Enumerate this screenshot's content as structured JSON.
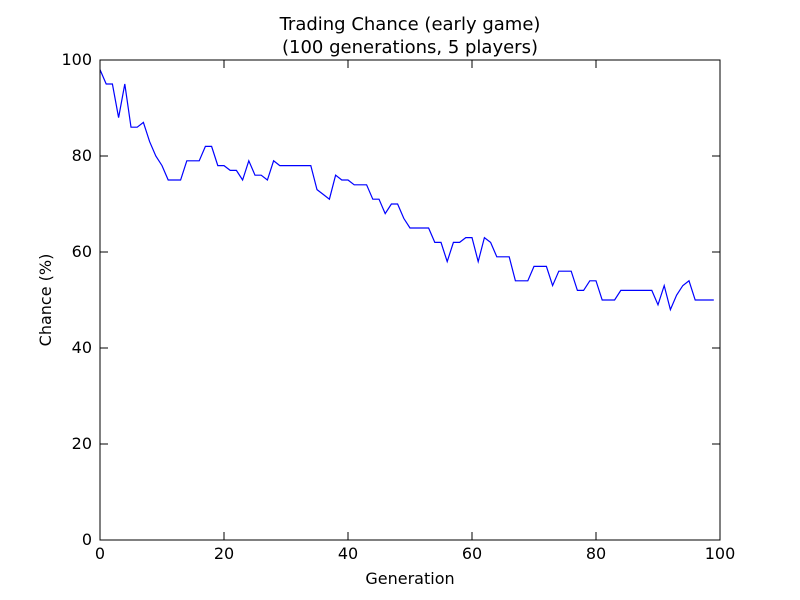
{
  "chart_data": {
    "type": "line",
    "title": "Trading Chance (early game)",
    "subtitle": "(100 generations, 5 players)",
    "xlabel": "Generation",
    "ylabel": "Chance (%)",
    "xlim": [
      0,
      100
    ],
    "ylim": [
      0,
      100
    ],
    "x_ticks": [
      "0",
      "20",
      "40",
      "60",
      "80",
      "100"
    ],
    "y_ticks": [
      "0",
      "20",
      "40",
      "60",
      "80",
      "100"
    ],
    "grid": false,
    "legend": "none",
    "series": [
      {
        "color": "#0000ff",
        "x": [
          0,
          1,
          2,
          3,
          4,
          5,
          6,
          7,
          8,
          9,
          10,
          11,
          12,
          13,
          14,
          15,
          16,
          17,
          18,
          19,
          20,
          21,
          22,
          23,
          24,
          25,
          26,
          27,
          28,
          29,
          30,
          31,
          32,
          33,
          34,
          35,
          36,
          37,
          38,
          39,
          40,
          41,
          42,
          43,
          44,
          45,
          46,
          47,
          48,
          49,
          50,
          51,
          52,
          53,
          54,
          55,
          56,
          57,
          58,
          59,
          60,
          61,
          62,
          63,
          64,
          65,
          66,
          67,
          68,
          69,
          70,
          71,
          72,
          73,
          74,
          75,
          76,
          77,
          78,
          79,
          80,
          81,
          82,
          83,
          84,
          85,
          86,
          87,
          88,
          89,
          90,
          91,
          92,
          93,
          94,
          95,
          96,
          97,
          98,
          99
        ],
        "y": [
          98,
          95,
          95,
          88,
          95,
          86,
          86,
          87,
          83,
          80,
          78,
          75,
          75,
          75,
          79,
          79,
          79,
          82,
          82,
          78,
          78,
          77,
          77,
          75,
          79,
          76,
          76,
          75,
          79,
          78,
          78,
          78,
          78,
          78,
          78,
          73,
          72,
          71,
          76,
          75,
          75,
          74,
          74,
          74,
          71,
          71,
          68,
          70,
          70,
          67,
          65,
          65,
          65,
          65,
          62,
          62,
          58,
          62,
          62,
          63,
          63,
          58,
          63,
          62,
          59,
          59,
          59,
          54,
          54,
          54,
          57,
          57,
          57,
          53,
          56,
          56,
          56,
          52,
          52,
          54,
          54,
          50,
          50,
          50,
          52,
          52,
          52,
          52,
          52,
          52,
          49,
          53,
          48,
          51,
          53,
          54,
          50,
          50,
          50,
          50
        ]
      }
    ]
  }
}
